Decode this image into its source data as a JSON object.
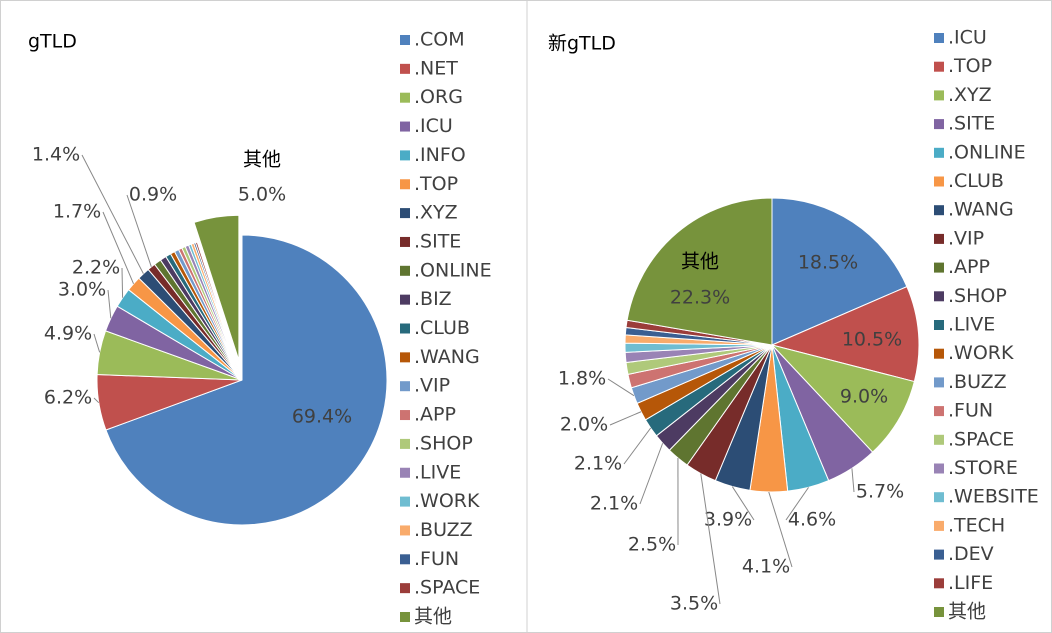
{
  "chart_data": [
    {
      "type": "pie",
      "title": "gTLD",
      "categories": [
        ".COM",
        ".NET",
        ".ORG",
        ".ICU",
        ".INFO",
        ".TOP",
        ".XYZ",
        ".SITE",
        ".ONLINE",
        ".BIZ",
        ".CLUB",
        ".WANG",
        ".VIP",
        ".APP",
        ".SHOP",
        ".LIVE",
        ".WORK",
        ".BUZZ",
        ".FUN",
        ".SPACE",
        "其他"
      ],
      "values": [
        69.4,
        6.2,
        4.9,
        3.0,
        2.2,
        1.7,
        1.4,
        0.9,
        0.8,
        0.7,
        0.6,
        0.5,
        0.5,
        0.4,
        0.4,
        0.4,
        0.3,
        0.3,
        0.2,
        0.2,
        5.0
      ],
      "value_labels": [
        "69.4%",
        "6.2%",
        "4.9%",
        "3.0%",
        "2.2%",
        "1.7%",
        "1.4%",
        "0.9%",
        null,
        null,
        null,
        null,
        null,
        null,
        null,
        null,
        null,
        null,
        null,
        null,
        "5.0%"
      ],
      "colors": [
        "#4f81bd",
        "#c0504d",
        "#9bbb59",
        "#8064a2",
        "#4bacc6",
        "#f79646",
        "#2c4d75",
        "#772c2a",
        "#5f7530",
        "#4d3b62",
        "#276a7c",
        "#b65708",
        "#729aca",
        "#cd7371",
        "#afc97a",
        "#9983b5",
        "#6fbdd1",
        "#f9ab6b",
        "#3a5f92",
        "#9b3d3a",
        "#77933c"
      ]
    },
    {
      "type": "pie",
      "title": "新gTLD",
      "categories": [
        ".ICU",
        ".TOP",
        ".XYZ",
        ".SITE",
        ".ONLINE",
        ".CLUB",
        ".WANG",
        ".VIP",
        ".APP",
        ".SHOP",
        ".LIVE",
        ".WORK",
        ".BUZZ",
        ".FUN",
        ".SPACE",
        ".STORE",
        ".WEBSITE",
        ".TECH",
        ".DEV",
        ".LIFE",
        "其他"
      ],
      "values": [
        18.5,
        10.5,
        9.0,
        5.7,
        4.6,
        4.1,
        3.9,
        3.5,
        2.5,
        2.1,
        2.1,
        2.0,
        1.8,
        1.5,
        1.3,
        1.1,
        1.0,
        0.9,
        0.8,
        0.8,
        22.3
      ],
      "value_labels": [
        "18.5%",
        "10.5%",
        "9.0%",
        "5.7%",
        "4.6%",
        "4.1%",
        "3.9%",
        "3.5%",
        "2.5%",
        "2.1%",
        "2.1%",
        "2.0%",
        "1.8%",
        null,
        null,
        null,
        null,
        null,
        null,
        null,
        "22.3%"
      ],
      "colors": [
        "#4f81bd",
        "#c0504d",
        "#9bbb59",
        "#8064a2",
        "#4bacc6",
        "#f79646",
        "#2c4d75",
        "#772c2a",
        "#5f7530",
        "#4d3b62",
        "#276a7c",
        "#b65708",
        "#729aca",
        "#cd7371",
        "#afc97a",
        "#9983b5",
        "#6fbdd1",
        "#f9ab6b",
        "#3a5f92",
        "#9b3d3a",
        "#77933c"
      ]
    }
  ]
}
